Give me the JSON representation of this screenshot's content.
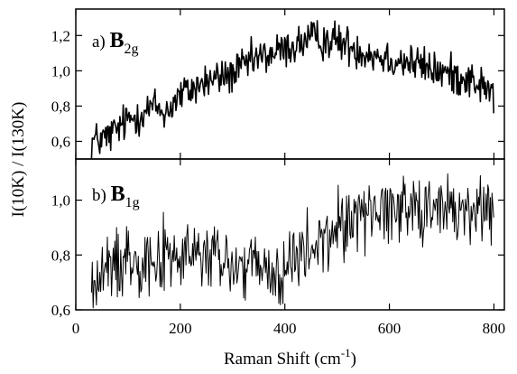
{
  "chart_data": {
    "type": "line",
    "ylabel": "I(10K) / I(130K)",
    "xlabel": {
      "main": "Raman Shift (cm",
      "sup": "-1",
      "tail": ")"
    },
    "x_range": [
      0,
      820
    ],
    "x_ticks": [
      "0",
      "200",
      "400",
      "600",
      "800"
    ],
    "x_tick_values": [
      0,
      200,
      400,
      600,
      800
    ],
    "grid": false,
    "panels": [
      {
        "label_prefix": "a) ",
        "label_main": "B",
        "label_sub": "2g",
        "ylim": [
          0.5,
          1.35
        ],
        "y_ticks": [
          "0,6",
          "0,8",
          "1,0",
          "1,2"
        ],
        "y_tick_values": [
          0.6,
          0.8,
          1.0,
          1.2
        ],
        "line_color": "#000000",
        "line_weight": "thick",
        "trend": [
          [
            30,
            0.6
          ],
          [
            60,
            0.62
          ],
          [
            100,
            0.72
          ],
          [
            150,
            0.8
          ],
          [
            170,
            0.76
          ],
          [
            200,
            0.86
          ],
          [
            250,
            0.94
          ],
          [
            300,
            0.98
          ],
          [
            340,
            1.06
          ],
          [
            400,
            1.12
          ],
          [
            450,
            1.18
          ],
          [
            500,
            1.17
          ],
          [
            550,
            1.11
          ],
          [
            600,
            1.07
          ],
          [
            650,
            1.04
          ],
          [
            700,
            0.99
          ],
          [
            750,
            0.96
          ],
          [
            800,
            0.87
          ]
        ],
        "noise": 0.055
      },
      {
        "label_prefix": "b) ",
        "label_main": "B",
        "label_sub": "1g",
        "ylim": [
          0.6,
          1.15
        ],
        "y_ticks": [
          "0,6",
          "0,8",
          "1,0"
        ],
        "y_tick_values": [
          0.6,
          0.8,
          1.0
        ],
        "line_color": "#000000",
        "line_weight": "thin",
        "trend": [
          [
            30,
            0.68
          ],
          [
            60,
            0.74
          ],
          [
            100,
            0.8
          ],
          [
            150,
            0.79
          ],
          [
            200,
            0.79
          ],
          [
            250,
            0.8
          ],
          [
            300,
            0.76
          ],
          [
            350,
            0.75
          ],
          [
            380,
            0.71
          ],
          [
            420,
            0.78
          ],
          [
            470,
            0.84
          ],
          [
            520,
            0.93
          ],
          [
            560,
            0.96
          ],
          [
            600,
            0.97
          ],
          [
            650,
            0.99
          ],
          [
            700,
            0.96
          ],
          [
            750,
            0.96
          ],
          [
            800,
            0.97
          ]
        ],
        "noise": 0.065
      }
    ]
  }
}
